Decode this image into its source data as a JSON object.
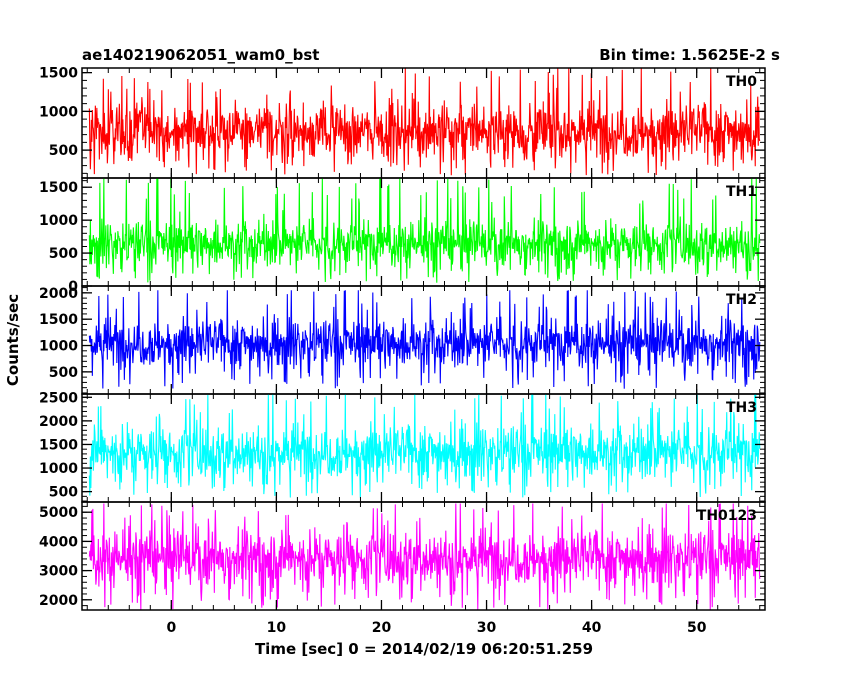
{
  "header": {
    "left": "ae140219062051_wam0_bst",
    "right": "Bin time: 1.5625E-2 s"
  },
  "chart_data": {
    "type": "line",
    "xlabel": "Time [sec] 0 = 2014/02/19 06:20:51.259",
    "ylabel": "Counts/sec",
    "xlim": [
      -8.5,
      56.5
    ],
    "x_data_range": [
      -7.8,
      56.0
    ],
    "x_ticks": [
      0,
      10,
      20,
      30,
      40,
      50
    ],
    "x_tick_labels": [
      "0",
      "10",
      "20",
      "30",
      "40",
      "50"
    ],
    "x_minor_step": 2,
    "panels": [
      {
        "name": "TH0",
        "color": "#ff0000",
        "ylim": [
          140,
          1560
        ],
        "y_ticks": [
          500,
          1000,
          1500
        ],
        "y_tick_labels": [
          "500",
          "1000",
          "1500"
        ],
        "y_minor_step": 100,
        "center": 750,
        "spread": 185,
        "floor_min": 175,
        "peak_max": 1560
      },
      {
        "name": "TH1",
        "color": "#00ff00",
        "ylim": [
          0,
          1640
        ],
        "y_ticks": [
          0,
          500,
          1000,
          1500
        ],
        "y_tick_labels": [
          "0",
          "500",
          "1000",
          "1500"
        ],
        "y_minor_step": 100,
        "center": 650,
        "spread": 175,
        "floor_min": 50,
        "peak_max": 1640
      },
      {
        "name": "TH2",
        "color": "#0000ff",
        "ylim": [
          80,
          2130
        ],
        "y_ticks": [
          500,
          1000,
          1500,
          2000
        ],
        "y_tick_labels": [
          "500",
          "1000",
          "1500",
          "2000"
        ],
        "y_minor_step": 100,
        "center": 1050,
        "spread": 230,
        "floor_min": 180,
        "peak_max": 2050
      },
      {
        "name": "TH3",
        "color": "#00ffff",
        "ylim": [
          280,
          2570
        ],
        "y_ticks": [
          500,
          1000,
          1500,
          2000,
          2500
        ],
        "y_tick_labels": [
          "500",
          "1000",
          "1500",
          "2000",
          "2500"
        ],
        "y_minor_step": 100,
        "center": 1350,
        "spread": 290,
        "floor_min": 370,
        "peak_max": 2570
      },
      {
        "name": "TH0123",
        "color": "#ff00ff",
        "ylim": [
          1650,
          5350
        ],
        "y_ticks": [
          2000,
          3000,
          4000,
          5000
        ],
        "y_tick_labels": [
          "2000",
          "3000",
          "4000",
          "5000"
        ],
        "y_minor_step": 200,
        "center": 3450,
        "spread": 480,
        "floor_min": 1650,
        "peak_max": 5300
      }
    ]
  }
}
